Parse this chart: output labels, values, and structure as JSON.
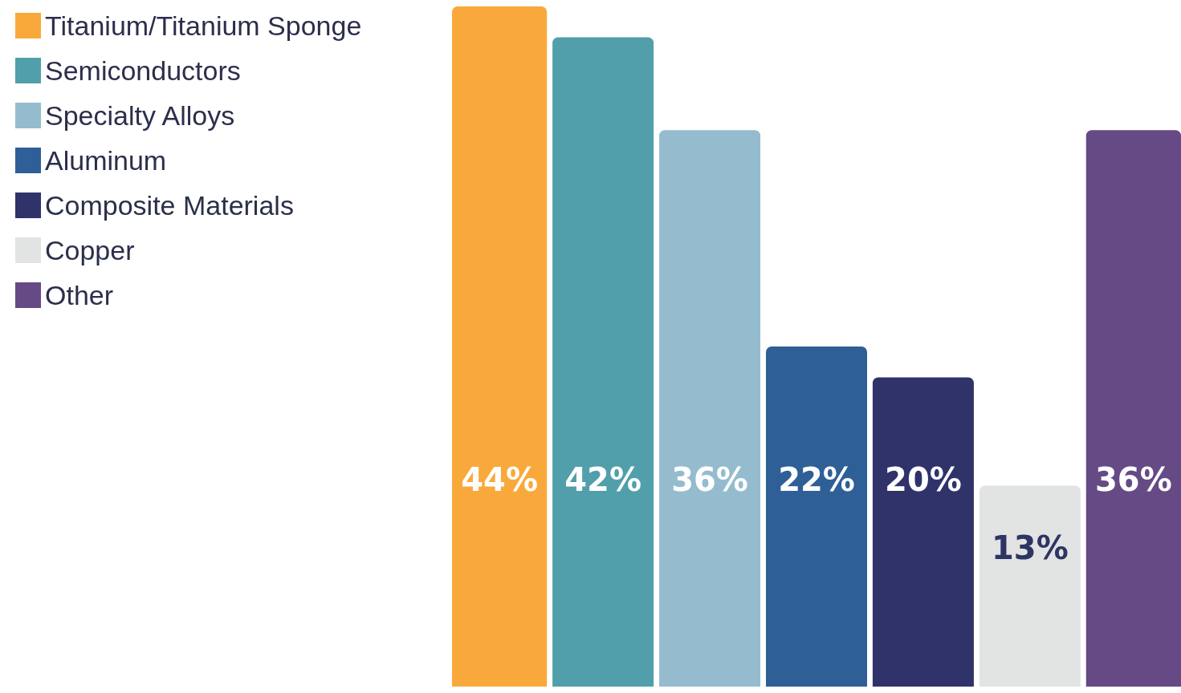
{
  "chart_data": {
    "type": "bar",
    "categories": [
      null
    ],
    "series": [
      {
        "name": "Titanium/Titanium Sponge",
        "color": "#f9a93b",
        "values": [
          44
        ],
        "value_labels": [
          "44%"
        ]
      },
      {
        "name": "Semiconductors",
        "color": "#519faa",
        "values": [
          42
        ],
        "value_labels": [
          "42%"
        ]
      },
      {
        "name": "Specialty Alloys",
        "color": "#95bcce",
        "values": [
          36
        ],
        "value_labels": [
          "36%"
        ]
      },
      {
        "name": "Aluminum",
        "color": "#2e5f97",
        "values": [
          22
        ],
        "value_labels": [
          "22%"
        ]
      },
      {
        "name": "Composite Materials",
        "color": "#30326a",
        "values": [
          20
        ],
        "value_labels": [
          "20%"
        ]
      },
      {
        "name": "Copper",
        "color": "#e2e3e3",
        "values": [
          13
        ],
        "value_labels": [
          "13%"
        ]
      },
      {
        "name": "Other",
        "color": "#654a85",
        "values": [
          36
        ],
        "value_labels": [
          "36%"
        ]
      }
    ],
    "legend": "top left",
    "grid": false
  }
}
